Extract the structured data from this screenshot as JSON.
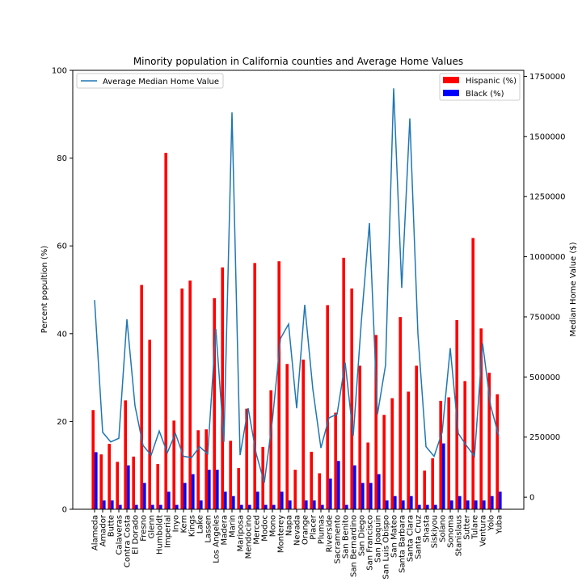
{
  "chart_data": {
    "type": "bar",
    "title": "Minority population in California counties and Average Home Values",
    "xlabel": "",
    "ylabel": "Percent popultion (%)",
    "ylabel_right": "Median Home Value ($)",
    "ylim": [
      0,
      100
    ],
    "ylim_right": [
      -50000,
      1775000
    ],
    "yticks": [
      "0",
      "20",
      "40",
      "60",
      "80",
      "100"
    ],
    "yticks_right": [
      "0",
      "250000",
      "500000",
      "750000",
      "1000000",
      "1250000",
      "1500000",
      "1750000"
    ],
    "legend_placement": "top-right",
    "line_legend_placement": "top-left",
    "categories": [
      "Alameda",
      "Amador",
      "Butte",
      "Calaveras",
      "Contra Costa",
      "El Dorado",
      "Fresno",
      "Glenn",
      "Humboldt",
      "Imperial",
      "Inyo",
      "Kern",
      "Kings",
      "Lake",
      "Lassen",
      "Los Angeles",
      "Madera",
      "Marin",
      "Mariposa",
      "Mendocino",
      "Merced",
      "Modoc",
      "Mono",
      "Monterey",
      "Napa",
      "Nevada",
      "Orange",
      "Placer",
      "Plumas",
      "Riverside",
      "Sacramento",
      "San Benito",
      "San Bernardino",
      "San Diego",
      "San Francisco",
      "San Joaquin",
      "San Luis Obispo",
      "San Mateo",
      "Santa Barbara",
      "Santa Clara",
      "Santa Cruz",
      "Shasta",
      "Siskiyou",
      "Solano",
      "Sonoma",
      "Stanislaus",
      "Sutter",
      "Tulare",
      "Ventura",
      "Yolo",
      "Yuba"
    ],
    "series": [
      {
        "name": "Hispanic (%)",
        "color": "#ff0000",
        "values": [
          22.6,
          12.5,
          14.9,
          10.8,
          24.8,
          12.0,
          51.1,
          38.6,
          10.3,
          81.2,
          20.2,
          50.3,
          52.1,
          18.0,
          18.2,
          48.1,
          55.1,
          15.6,
          9.4,
          22.9,
          56.1,
          14.2,
          27.1,
          56.5,
          33.1,
          9.0,
          34.1,
          13.1,
          8.2,
          46.5,
          22.0,
          57.3,
          50.3,
          32.7,
          15.2,
          39.7,
          21.5,
          25.3,
          43.8,
          26.8,
          32.7,
          8.8,
          11.6,
          24.7,
          25.5,
          43.1,
          29.2,
          61.8,
          41.2,
          31.1,
          26.2
        ]
      },
      {
        "name": "Black (%)",
        "color": "#0000ff",
        "values": [
          13.0,
          2.0,
          2.0,
          1.0,
          10.0,
          1.0,
          6.0,
          1.0,
          1.0,
          4.0,
          1.0,
          6.0,
          8.0,
          2.0,
          9.0,
          9.0,
          4.0,
          3.0,
          1.0,
          1.0,
          4.0,
          1.0,
          1.0,
          4.0,
          2.0,
          0.0,
          2.0,
          2.0,
          1.0,
          7.0,
          11.0,
          1.0,
          10.0,
          6.0,
          6.0,
          8.0,
          2.0,
          3.0,
          2.0,
          3.0,
          1.0,
          1.0,
          1.0,
          15.0,
          2.0,
          3.0,
          2.0,
          2.0,
          2.0,
          3.0,
          4.0
        ]
      },
      {
        "name": "Average Median Home Value",
        "color": "#1f77b4",
        "values": [
          820000,
          270000,
          230000,
          245000,
          740000,
          380000,
          215000,
          175000,
          275000,
          185000,
          265000,
          170000,
          165000,
          210000,
          180000,
          700000,
          230000,
          1600000,
          175000,
          370000,
          180000,
          60000,
          320000,
          660000,
          720000,
          370000,
          800000,
          450000,
          205000,
          330000,
          345000,
          560000,
          255000,
          730000,
          1140000,
          345000,
          550000,
          1700000,
          870000,
          1575000,
          680000,
          210000,
          170000,
          270000,
          620000,
          265000,
          215000,
          170000,
          640000,
          380000,
          255000
        ]
      }
    ]
  }
}
